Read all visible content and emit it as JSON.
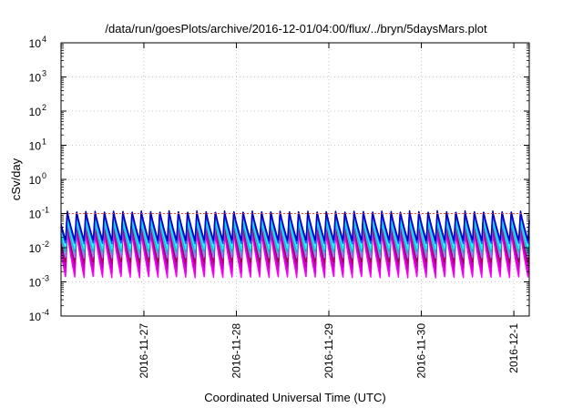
{
  "chart_data": {
    "type": "line",
    "title": "/data/run/goesPlots/archive/2016-12-01/04:00/flux/../bryn/5daysMars.plot",
    "xlabel": "Coordinated Universal Time (UTC)",
    "ylabel": "cSv/day",
    "yscale": "log",
    "ylim": [
      0.0001,
      10000
    ],
    "xlim": [
      "2016-11-26T02:30",
      "2016-12-01T04:00"
    ],
    "grid": true,
    "legend": "none",
    "y_ticks": [
      {
        "base": "10",
        "exp": "-4"
      },
      {
        "base": "10",
        "exp": "-3"
      },
      {
        "base": "10",
        "exp": "-2"
      },
      {
        "base": "10",
        "exp": "-1"
      },
      {
        "base": "10",
        "exp": "0"
      },
      {
        "base": "10",
        "exp": "1"
      },
      {
        "base": "10",
        "exp": "2"
      },
      {
        "base": "10",
        "exp": "3"
      },
      {
        "base": "10",
        "exp": "4"
      }
    ],
    "x_ticks": [
      "2016-11-27",
      "2016-11-28",
      "2016-11-29",
      "2016-11-30",
      "2016-12-1"
    ],
    "reference_line": {
      "value": 0.1,
      "color": "#ff4040"
    },
    "pattern": {
      "peaks_per_day": 10,
      "phase_days": 0.05
    },
    "series": [
      {
        "color": "#ff00ff",
        "peak": 0.028,
        "trough": 0.0013
      },
      {
        "color": "#e000e0",
        "peak": 0.034,
        "trough": 0.0018
      },
      {
        "color": "#c000c0",
        "peak": 0.04,
        "trough": 0.0025
      },
      {
        "color": "#a00050",
        "peak": 0.048,
        "trough": 0.0035
      },
      {
        "color": "#8080ff",
        "peak": 0.06,
        "trough": 0.005
      },
      {
        "color": "#00c0c0",
        "peak": 0.07,
        "trough": 0.007
      },
      {
        "color": "#00ffff",
        "peak": 0.08,
        "trough": 0.009
      },
      {
        "color": "#2050ff",
        "peak": 0.105,
        "trough": 0.013
      },
      {
        "color": "#0000c0",
        "peak": 0.12,
        "trough": 0.016
      }
    ]
  }
}
